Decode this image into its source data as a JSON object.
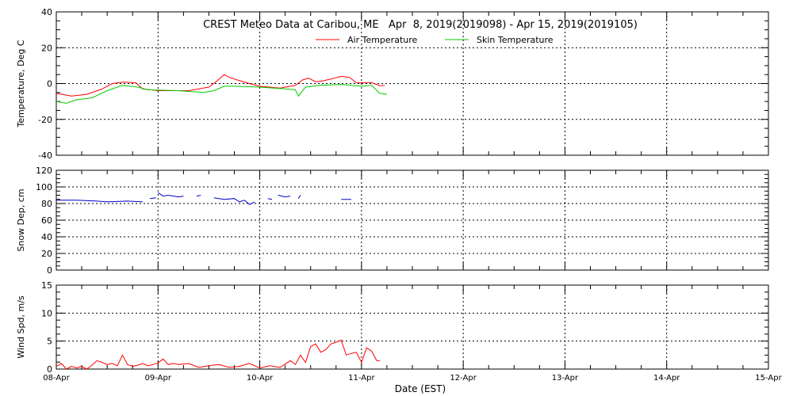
{
  "chart_data": [
    {
      "type": "line",
      "title": "CREST Meteo Data at Caribou, ME   Apr  8, 2019(2019098) - Apr 15, 2019(2019105)",
      "ylabel": "Temperature, Deg C",
      "ylim": [
        -40,
        40
      ],
      "yticks": [
        -40,
        -20,
        0,
        20,
        40
      ],
      "grid": true,
      "legend": "top-center",
      "series": [
        {
          "name": "Air Temperature",
          "color": "#ff0000",
          "x": [
            0,
            0.15,
            0.3,
            0.45,
            0.55,
            0.65,
            0.78,
            0.85,
            1.0,
            1.3,
            1.5,
            1.58,
            1.65,
            1.7,
            1.78,
            1.9,
            2.0,
            2.2,
            2.35,
            2.42,
            2.48,
            2.55,
            2.62,
            2.7,
            2.8,
            2.88,
            2.95,
            3.1,
            3.18,
            3.23
          ],
          "y": [
            -5.5,
            -7,
            -6,
            -3,
            0,
            0.8,
            0.5,
            -3,
            -4,
            -4,
            -2,
            1.5,
            5,
            3.5,
            2,
            0,
            -1.5,
            -2.5,
            -1,
            2,
            3,
            1,
            1.5,
            2.5,
            4,
            3.5,
            0.5,
            0.5,
            -1.2,
            -1
          ]
        },
        {
          "name": "Skin Temperature",
          "color": "#00cc00",
          "x": [
            0,
            0.1,
            0.2,
            0.35,
            0.5,
            0.65,
            0.8,
            0.9,
            1.2,
            1.45,
            1.55,
            1.65,
            1.75,
            2.0,
            2.25,
            2.35,
            2.38,
            2.45,
            2.6,
            2.8,
            3.0,
            3.1,
            3.18,
            3.25
          ],
          "y": [
            -10,
            -11,
            -9,
            -8,
            -4,
            -1,
            -2,
            -3.5,
            -4,
            -5,
            -4,
            -1.5,
            -1.5,
            -2,
            -3,
            -3.5,
            -7,
            -2,
            -1,
            -0.5,
            -1.5,
            -1,
            -5.5,
            -6
          ]
        }
      ]
    },
    {
      "type": "line",
      "ylabel": "Snow Dep, cm",
      "ylim": [
        0,
        120
      ],
      "yticks": [
        0,
        20,
        40,
        60,
        80,
        100,
        120
      ],
      "grid": true,
      "series": [
        {
          "name": "Snow Depth",
          "color": "#0000cc",
          "x": [
            0,
            0.2,
            0.4,
            0.5,
            0.7,
            0.85,
            null,
            0.92,
            0.98,
            null,
            1.0,
            1.05,
            1.1,
            1.2,
            1.25,
            null,
            1.38,
            1.42,
            null,
            1.55,
            1.65,
            1.75,
            1.8,
            1.85,
            1.9,
            1.95,
            null,
            2.08,
            2.12,
            null,
            2.18,
            2.25,
            2.3,
            null,
            2.38,
            2.4,
            null,
            2.8,
            2.9
          ],
          "y": [
            84,
            84,
            83,
            82,
            83,
            82,
            null,
            86,
            87,
            null,
            93,
            89,
            90,
            88,
            89,
            null,
            89,
            90,
            null,
            87,
            85,
            86,
            82,
            84,
            79,
            82,
            null,
            86,
            85,
            null,
            90,
            88,
            89,
            null,
            86,
            90,
            null,
            85,
            85
          ]
        }
      ]
    },
    {
      "type": "line",
      "ylabel": "Wind Spd, m/s",
      "xlabel": "Date (EST)",
      "ylim": [
        0,
        15
      ],
      "yticks": [
        0,
        5,
        10,
        15
      ],
      "grid": true,
      "xticks": [
        "08-Apr",
        "09-Apr",
        "10-Apr",
        "11-Apr",
        "12-Apr",
        "13-Apr",
        "14-Apr",
        "15-Apr"
      ],
      "series": [
        {
          "name": "Wind Speed",
          "color": "#ff0000",
          "x": [
            0,
            0.05,
            0.1,
            0.15,
            0.2,
            0.25,
            0.3,
            0.35,
            0.4,
            0.45,
            0.5,
            0.55,
            0.6,
            0.65,
            0.7,
            0.75,
            0.8,
            0.85,
            0.9,
            0.95,
            1.0,
            1.05,
            1.1,
            1.15,
            1.2,
            1.3,
            1.4,
            1.5,
            1.6,
            1.7,
            1.8,
            1.9,
            2.0,
            2.1,
            2.2,
            2.3,
            2.35,
            2.4,
            2.45,
            2.5,
            2.55,
            2.6,
            2.65,
            2.7,
            2.75,
            2.8,
            2.85,
            2.9,
            2.95,
            3.0,
            3.05,
            3.1,
            3.15,
            3.18
          ],
          "y": [
            0.5,
            1,
            0,
            0.5,
            0.2,
            0.5,
            0,
            0.7,
            1.5,
            1.2,
            0.8,
            1,
            0.6,
            2.5,
            0.8,
            0.5,
            0.7,
            1,
            0.6,
            0.8,
            1.1,
            1.8,
            0.8,
            1,
            0.8,
            1,
            0.3,
            0.6,
            0.8,
            0.3,
            0.5,
            1,
            0.2,
            0.6,
            0.3,
            1.5,
            0.8,
            2.5,
            1.2,
            4,
            4.5,
            3,
            3.5,
            4.5,
            4.8,
            5.2,
            2.5,
            2.8,
            3,
            1.2,
            3.8,
            3.2,
            1.5,
            1.5
          ]
        }
      ]
    }
  ]
}
